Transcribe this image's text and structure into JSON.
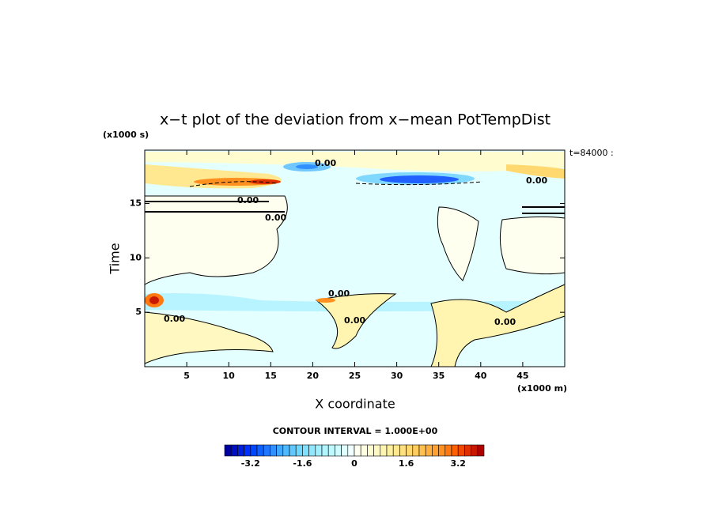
{
  "chart_data": {
    "type": "contour",
    "title": "x−t plot of the deviation from x−mean PotTempDist",
    "y_unit": "(x1000 s)",
    "time_label": "t=84000 :",
    "ylabel": "Time",
    "xlabel": "X coordinate",
    "x_unit": "(x1000 m)",
    "xlim": [
      0,
      50
    ],
    "ylim": [
      0,
      19.9
    ],
    "xticks": [
      5,
      10,
      15,
      20,
      25,
      30,
      35,
      40,
      45
    ],
    "yticks": [
      5,
      10,
      15
    ],
    "contour_labels": [
      "0.00",
      "0.00",
      "0.00",
      "0.00",
      "0.00",
      "0.00",
      "0.00",
      "0.00"
    ],
    "colorbar": {
      "title": "CONTOUR INTERVAL = 1.000E+00",
      "lim": [
        -4,
        4
      ],
      "ticks": [
        -3.2,
        -1.6,
        0,
        1.6,
        3.2
      ],
      "colors": [
        "#0000a0",
        "#0010c0",
        "#0020e0",
        "#0030ff",
        "#0048ff",
        "#1060ff",
        "#2078ff",
        "#3090ff",
        "#40a8ff",
        "#50b8ff",
        "#60c8ff",
        "#70d8ff",
        "#80e0ff",
        "#90e8ff",
        "#a0f0ff",
        "#b0f4ff",
        "#c0f8ff",
        "#d0fcff",
        "#e0ffff",
        "#f0ffff",
        "#fffff0",
        "#ffffe0",
        "#fffcd0",
        "#fff8c0",
        "#fff4b0",
        "#fff0a0",
        "#ffe890",
        "#ffe080",
        "#ffd870",
        "#ffcc60",
        "#ffc050",
        "#ffb040",
        "#ffa030",
        "#ff9020",
        "#ff7810",
        "#ff6000",
        "#f04800",
        "#e03000",
        "#c81800",
        "#b00000"
      ]
    }
  }
}
